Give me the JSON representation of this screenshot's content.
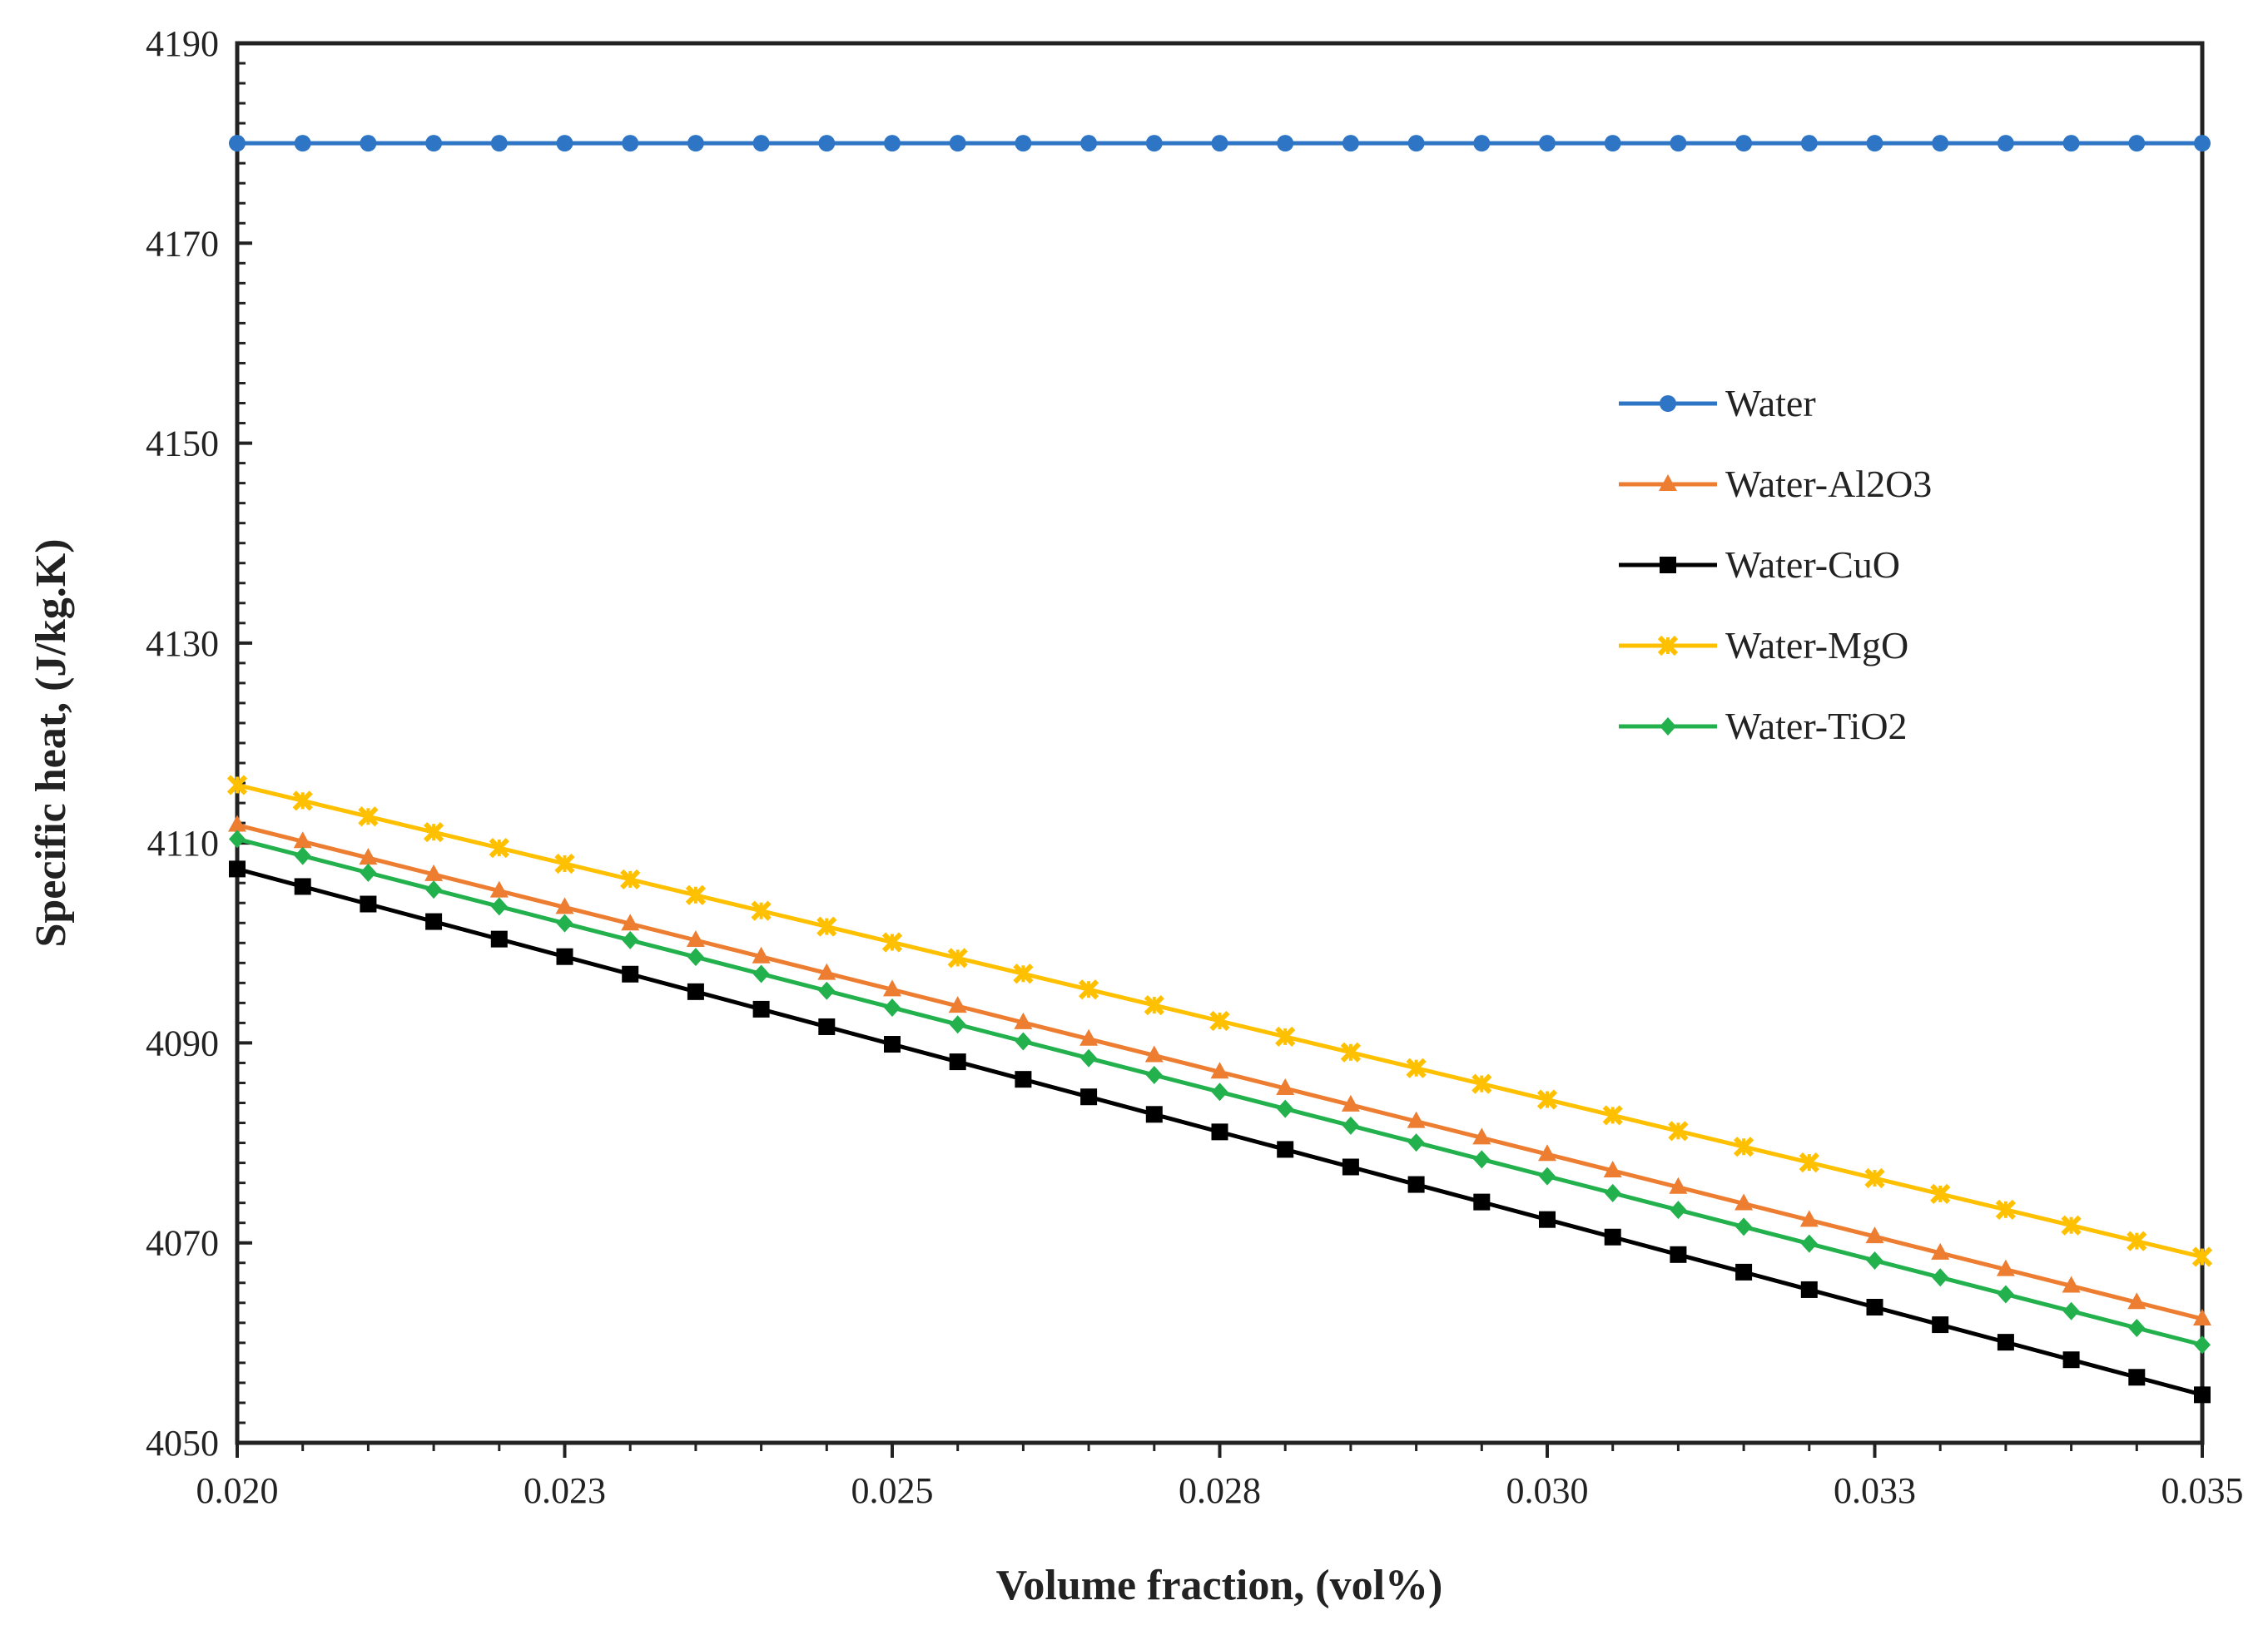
{
  "chart_data": {
    "type": "line",
    "title": "",
    "xlabel": "Volume fraction, (vol%)",
    "ylabel": "Specific heat, (J/kg.K)",
    "xlim": [
      0.02,
      0.035
    ],
    "ylim": [
      4050,
      4190
    ],
    "xticks": [
      0.02,
      0.0225,
      0.025,
      0.0275,
      0.03,
      0.0325,
      0.035
    ],
    "xtick_labels": [
      "0.020",
      "0.023",
      "0.025",
      "0.028",
      "0.030",
      "0.033",
      "0.035"
    ],
    "yticks": [
      4050,
      4070,
      4090,
      4110,
      4130,
      4150,
      4170,
      4190
    ],
    "ytick_labels": [
      "4050",
      "4070",
      "4090",
      "4110",
      "4130",
      "4150",
      "4170",
      "4190"
    ],
    "legend_position": "right",
    "x_start": 0.02,
    "x_step": 0.0005,
    "x_count": 31,
    "series": [
      {
        "name": "Water",
        "color": "#2E75C6",
        "marker": "circle",
        "start": 4180,
        "end": 4180
      },
      {
        "name": "Water-Al2O3",
        "color": "#ED7D31",
        "marker": "triangle",
        "start": 4111.8,
        "end": 4062.4
      },
      {
        "name": "Water-CuO",
        "color": "#000000",
        "marker": "square",
        "start": 4107.4,
        "end": 4054.8
      },
      {
        "name": "Water-MgO",
        "color": "#FFC000",
        "marker": "star",
        "start": 4115.8,
        "end": 4068.6
      },
      {
        "name": "Water-TiO2",
        "color": "#22B14C",
        "marker": "diamond",
        "start": 4110.4,
        "end": 4059.8
      }
    ]
  }
}
